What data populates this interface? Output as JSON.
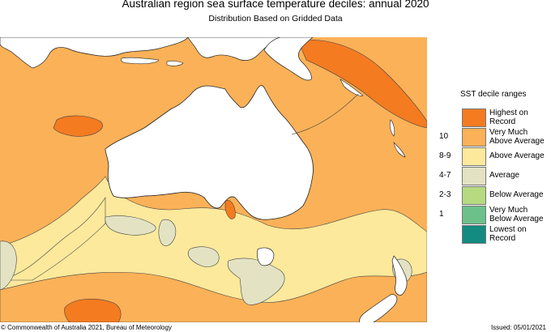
{
  "title": "Australian region sea surface temperature deciles:  annual 2020",
  "subtitle": "Distribution Based on Gridded Data",
  "legend": {
    "title": "SST decile ranges",
    "items": [
      {
        "code": "",
        "label": "Highest on Record",
        "color": "#f47b20"
      },
      {
        "code": "10",
        "label": "Very Much Above Average",
        "color": "#fbb157"
      },
      {
        "code": "8-9",
        "label": "Above Average",
        "color": "#fde99b"
      },
      {
        "code": "4-7",
        "label": "Average",
        "color": "#e3e3c4"
      },
      {
        "code": "2-3",
        "label": "Below Average",
        "color": "#b5da80"
      },
      {
        "code": "1",
        "label": "Very Much Below Average",
        "color": "#6cc08a"
      },
      {
        "code": "",
        "label": "Lowest on Record",
        "color": "#138b80"
      }
    ]
  },
  "footer": {
    "copyright": "© Commonwealth of Australia 2021, Bureau of Meteorology",
    "issued": "Issued: 05/01/2021"
  }
}
